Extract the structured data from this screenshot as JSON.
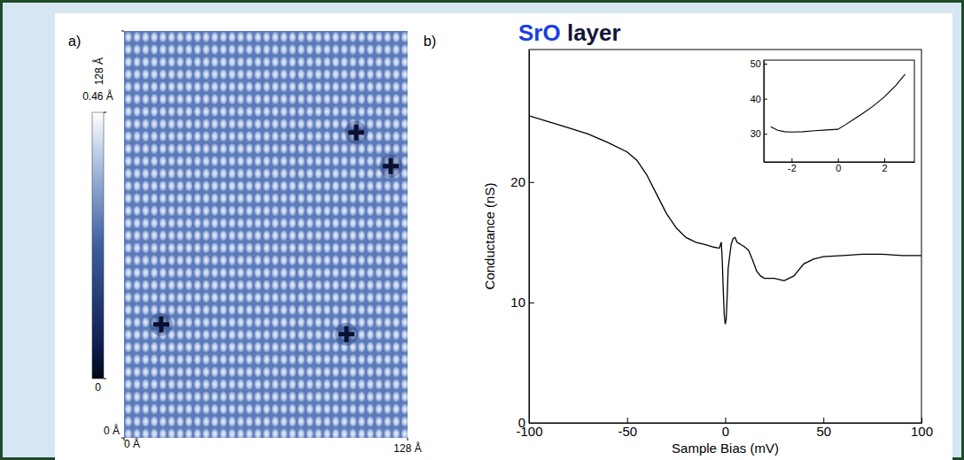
{
  "chart_data": [
    {
      "type": "image",
      "panel": "a)",
      "xlim": [
        0,
        128
      ],
      "ylim": [
        0,
        128
      ],
      "xticks": [
        {
          "value": 0,
          "label": "0 Å"
        },
        {
          "value": 128,
          "label": "128 Å"
        }
      ],
      "yticks": [
        {
          "value": 0,
          "label": "0 Å"
        },
        {
          "value": 128,
          "label": "128 Å"
        }
      ],
      "lattice_constant": 3.9,
      "defects": [
        {
          "x": 104.8,
          "y": 96.1
        },
        {
          "x": 120.4,
          "y": 85.5
        },
        {
          "x": 16.8,
          "y": 35.7
        },
        {
          "x": 100.4,
          "y": 32.6
        }
      ],
      "colorbar": {
        "range": [
          0,
          0.46
        ],
        "ticks": [
          0,
          {
            "value": 0.46,
            "label": "0.46 Å"
          }
        ]
      }
    },
    {
      "type": "line",
      "panel": "b)",
      "title": "SrO layer",
      "x_label": "Sample Bias (mV)",
      "y_label": "Conductance (nS)",
      "x": [
        -100,
        -90,
        -80,
        -70,
        -60,
        -50,
        -45,
        -40,
        -35,
        -30,
        -25,
        -20,
        -15,
        -10,
        -6,
        -3,
        -2,
        -1.5,
        -1,
        -0.5,
        0,
        0.5,
        1,
        1.5,
        2,
        3,
        4,
        5,
        6,
        7,
        8,
        10,
        12,
        14,
        16,
        18,
        20,
        25,
        30,
        35,
        40,
        45,
        50,
        60,
        70,
        80,
        90,
        100
      ],
      "values": [
        25.5,
        25.0,
        24.5,
        24.0,
        23.3,
        22.5,
        21.8,
        20.6,
        19.0,
        17.4,
        16.2,
        15.4,
        15.0,
        14.8,
        14.6,
        14.5,
        15.0,
        13.5,
        11.0,
        9.0,
        8.2,
        8.6,
        10.5,
        12.8,
        13.5,
        14.8,
        15.3,
        15.4,
        15.0,
        14.9,
        14.8,
        14.6,
        14.3,
        13.5,
        12.6,
        12.2,
        12.0,
        12.0,
        11.8,
        12.2,
        13.2,
        13.6,
        13.8,
        13.9,
        14.0,
        14.0,
        13.9,
        13.9
      ],
      "xlim": [
        -100,
        100
      ],
      "ylim": [
        0,
        31
      ],
      "xticks": [
        -100,
        -50,
        0,
        50,
        100
      ],
      "yticks": [
        0,
        10,
        20
      ],
      "color": "#000000",
      "grid": false
    },
    {
      "type": "line",
      "x": [
        -2.9,
        -2.6,
        -2.3,
        -2.0,
        -1.5,
        -1.0,
        -0.5,
        0,
        0.3,
        0.6,
        1.0,
        1.5,
        2.0,
        2.5,
        2.9
      ],
      "values": [
        32.0,
        31.0,
        30.6,
        30.5,
        30.6,
        30.9,
        31.1,
        31.3,
        32.5,
        33.8,
        35.5,
        37.8,
        40.5,
        43.8,
        47.0
      ],
      "xlim": [
        -3.2,
        3.3
      ],
      "ylim": [
        22,
        51
      ],
      "xticks": [
        -2,
        0,
        2
      ],
      "yticks": [
        30,
        40,
        50
      ],
      "color": "#000000",
      "grid": false
    }
  ]
}
